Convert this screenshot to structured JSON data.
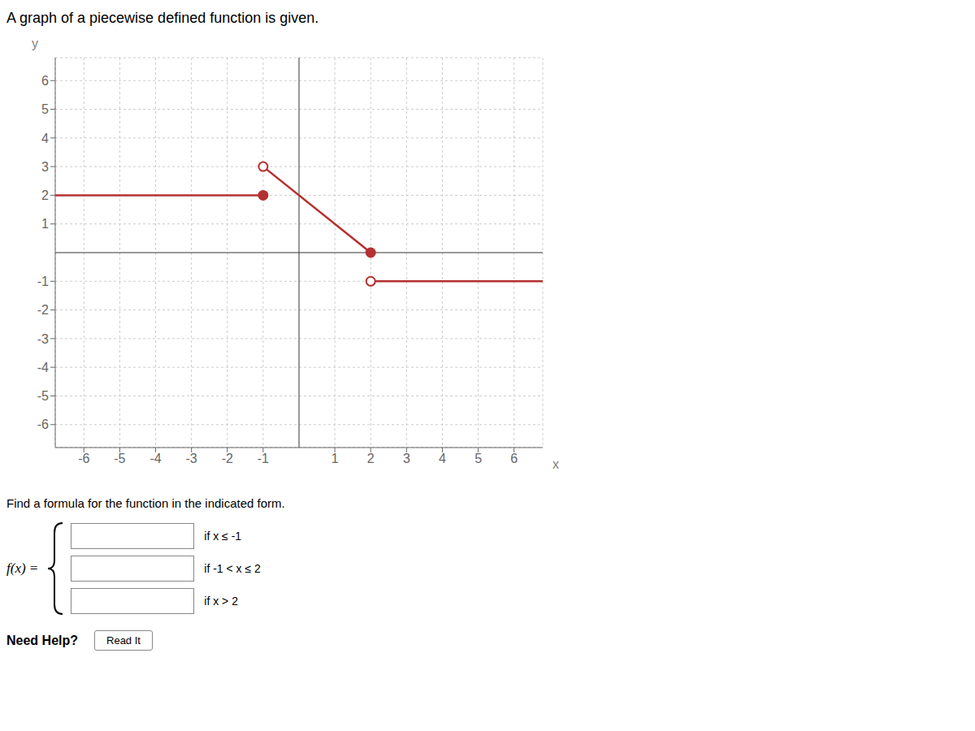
{
  "chart_data": {
    "type": "line",
    "title": "A graph of a piecewise defined function is given.",
    "xlabel": "x",
    "ylabel": "y",
    "xlim": [
      -6.8,
      6.8
    ],
    "ylim": [
      -6.8,
      6.8
    ],
    "xticks": [
      -6,
      -5,
      -4,
      -3,
      -2,
      -1,
      1,
      2,
      3,
      4,
      5,
      6
    ],
    "yticks": [
      -6,
      -5,
      -4,
      -3,
      -2,
      -1,
      1,
      2,
      3,
      4,
      5,
      6
    ],
    "grid": true,
    "series": [
      {
        "type": "line",
        "color": "#b53030",
        "x": [
          -6.8,
          -1
        ],
        "values": [
          2,
          2
        ]
      },
      {
        "type": "line",
        "color": "#b53030",
        "x": [
          -1,
          2
        ],
        "values": [
          3,
          0
        ]
      },
      {
        "type": "line",
        "color": "#b53030",
        "x": [
          2,
          6.8
        ],
        "values": [
          -1,
          -1
        ]
      },
      {
        "type": "scatter",
        "marker": "filled",
        "color": "#b53030",
        "x": [
          -1,
          2
        ],
        "values": [
          2,
          0
        ]
      },
      {
        "type": "scatter",
        "marker": "open",
        "color": "#b53030",
        "x": [
          -1,
          2
        ],
        "values": [
          3,
          -1
        ]
      }
    ],
    "annotations": [
      "Find a formula for the function in the indicated form.",
      "f(x) =",
      "if x ≤ -1",
      "if -1 < x ≤ 2",
      "if x > 2",
      "Need Help?",
      "Read It"
    ]
  }
}
